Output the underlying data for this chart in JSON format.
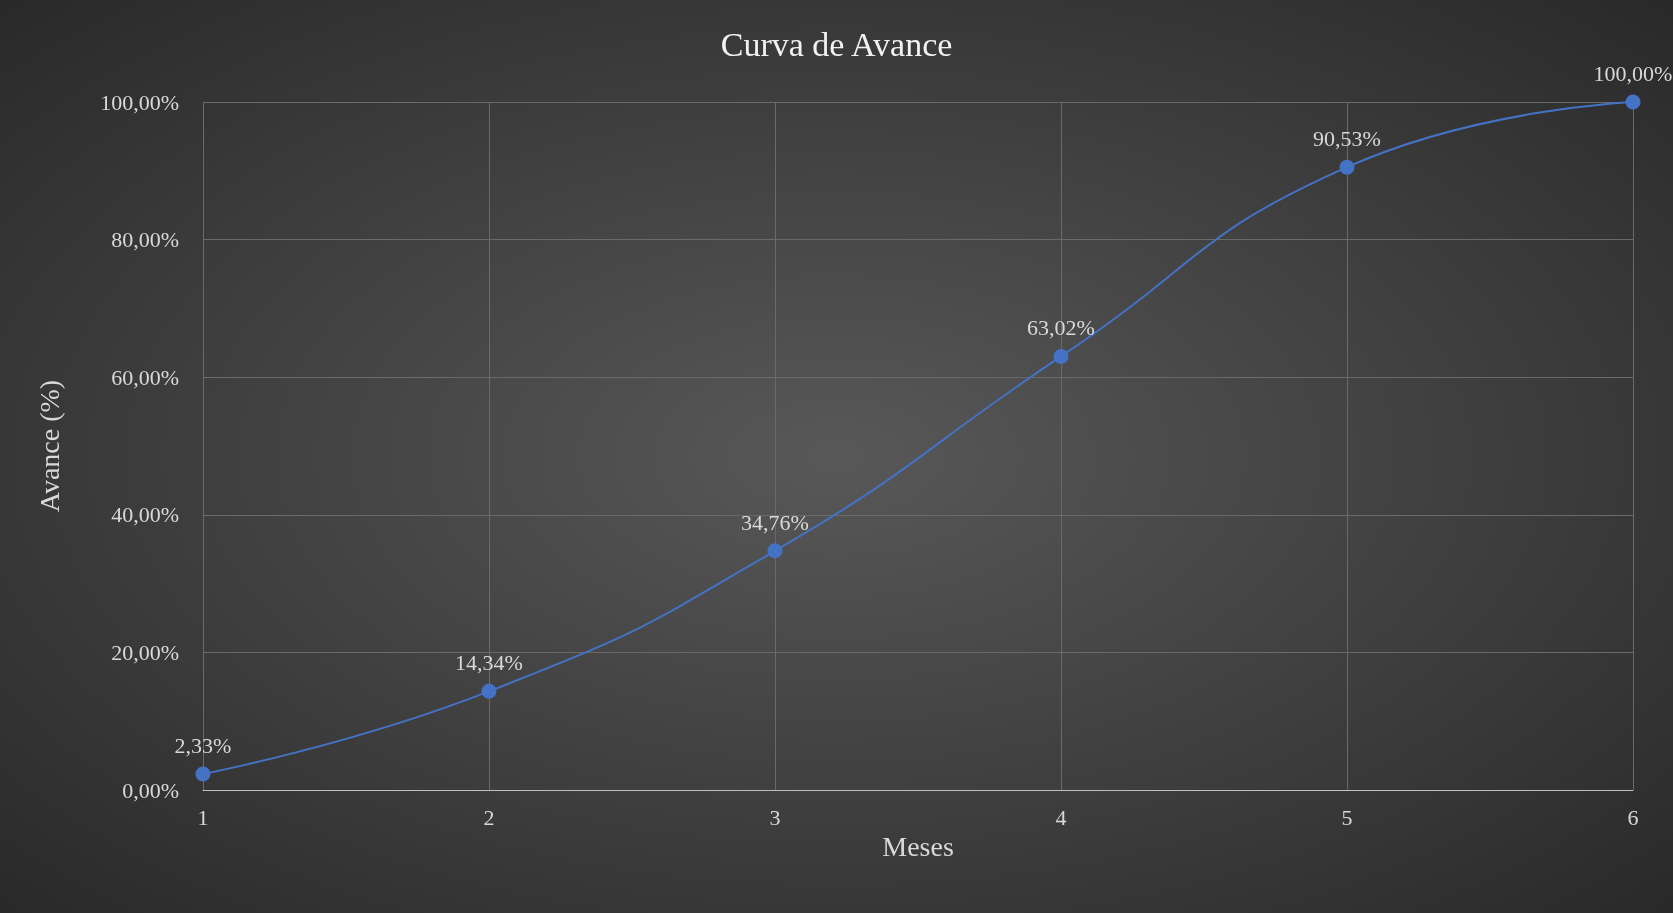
{
  "chart_data": {
    "type": "line",
    "title": "Curva de Avance",
    "xlabel": "Meses",
    "ylabel": "Avance (%)",
    "x": [
      1,
      2,
      3,
      4,
      5,
      6
    ],
    "series": [
      {
        "color": "#4472c4",
        "values": [
          2.33,
          14.34,
          34.76,
          63.02,
          90.53,
          100
        ],
        "value_labels": [
          "2,33%",
          "14,34%",
          "34,76%",
          "63,02%",
          "90,53%",
          "100,00%"
        ]
      }
    ],
    "xlim": [
      1,
      6
    ],
    "xticks": [
      1,
      2,
      3,
      4,
      5,
      6
    ],
    "ylim": [
      0,
      100
    ],
    "yticks": [
      {
        "value": 0,
        "label": "0,00%"
      },
      {
        "value": 20,
        "label": "20,00%"
      },
      {
        "value": 40,
        "label": "40,00%"
      },
      {
        "value": 60,
        "label": "60,00%"
      },
      {
        "value": 80,
        "label": "80,00%"
      },
      {
        "value": 100,
        "label": "100,00%"
      }
    ],
    "grid": true,
    "marker": "circle",
    "line_style": "solid"
  }
}
